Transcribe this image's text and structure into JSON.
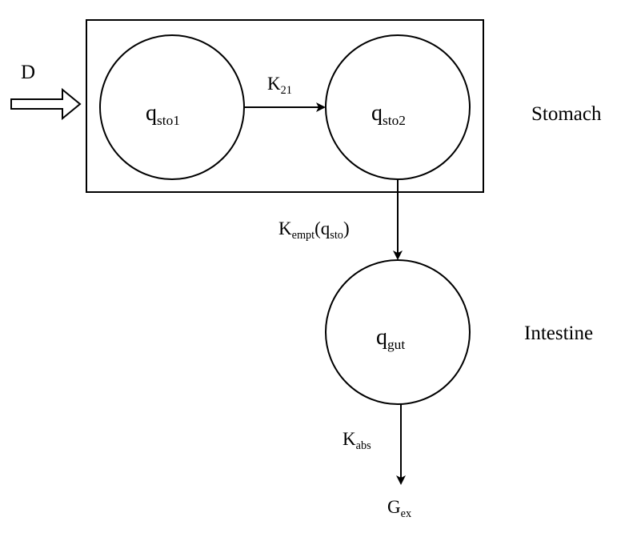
{
  "colors": {
    "stroke": "#000000",
    "background": "#ffffff"
  },
  "diagram": {
    "input": {
      "label": "D"
    },
    "compartments": {
      "q_sto1": {
        "base": "q",
        "sub": "sto1"
      },
      "q_sto2": {
        "base": "q",
        "sub": "sto2"
      },
      "q_gut": {
        "base": "q",
        "sub": "gut"
      }
    },
    "rates": {
      "k21": {
        "base": "K",
        "sub": "21"
      },
      "kempt": {
        "base": "K",
        "sub": "empt",
        "open": "(q",
        "arg_sub": "sto",
        "close": ")"
      },
      "kabs": {
        "base": "K",
        "sub": "abs"
      }
    },
    "output": {
      "base": "G",
      "sub": "ex"
    },
    "regions": {
      "stomach": "Stomach",
      "intestine": "Intestine"
    }
  }
}
